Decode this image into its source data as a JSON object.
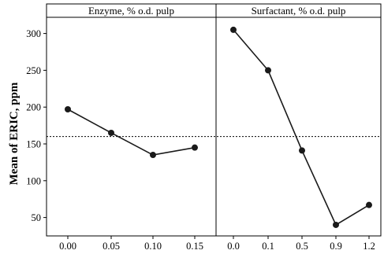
{
  "chart_data": {
    "type": "line",
    "ylabel": "Mean of ERIC, ppm",
    "ylim": [
      25,
      322
    ],
    "yticks": [
      50,
      100,
      150,
      200,
      250,
      300
    ],
    "reference_line": {
      "value": 160,
      "style": "dotted"
    },
    "grid": false,
    "panels": [
      {
        "title": "Enzyme, % o.d. pulp",
        "categories": [
          "0.00",
          "0.05",
          "0.10",
          "0.15"
        ],
        "values": [
          197,
          165,
          135,
          145
        ]
      },
      {
        "title": "Surfactant, % o.d. pulp",
        "categories": [
          "0.0",
          "0.1",
          "0.5",
          "0.9",
          "1.2"
        ],
        "values": [
          305,
          250,
          141,
          40,
          67
        ]
      }
    ],
    "colors": {
      "line": "#1a1a1a",
      "marker": "#1a1a1a",
      "frame": "#000000",
      "reference": "#000000"
    }
  }
}
